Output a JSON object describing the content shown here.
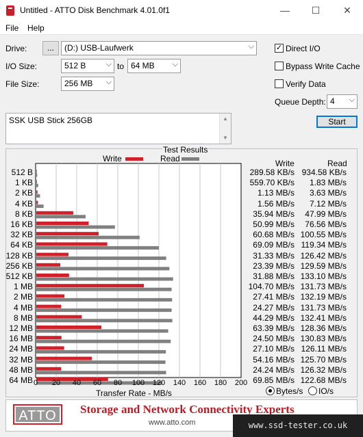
{
  "window": {
    "title": "Untitled - ATTO Disk Benchmark 4.01.0f1",
    "minimize": "—",
    "maximize": "☐",
    "close": "✕"
  },
  "menu": {
    "file": "File",
    "help": "Help"
  },
  "controls": {
    "drive_label": "Drive:",
    "browse": "...",
    "drive_value": "(D:) USB-Laufwerk",
    "io_label": "I/O Size:",
    "io_from": "512 B",
    "io_to_word": "to",
    "io_to": "64 MB",
    "file_label": "File Size:",
    "file_value": "256 MB",
    "direct_io": "Direct I/O",
    "bypass": "Bypass Write Cache",
    "verify": "Verify Data",
    "queue_label": "Queue Depth:",
    "queue_value": "4",
    "start": "Start",
    "description": "SSK USB Stick 256GB"
  },
  "checks": {
    "direct_io": "✓",
    "bypass": "",
    "verify": ""
  },
  "results": {
    "title": "Test Results",
    "legend_write": "Write",
    "legend_read": "Read",
    "col_write": "Write",
    "col_read": "Read",
    "units_bytes": "Bytes/s",
    "units_io": "IO/s",
    "x_title": "Transfer Rate - MB/s",
    "x_ticks": [
      "0",
      "20",
      "40",
      "60",
      "80",
      "100",
      "120",
      "140",
      "160",
      "180",
      "200"
    ]
  },
  "colors": {
    "write": "#d0202a",
    "read": "#808080"
  },
  "chart_data": {
    "type": "bar",
    "orientation": "horizontal",
    "categories": [
      "512 B",
      "1 KB",
      "2 KB",
      "4 KB",
      "8 KB",
      "16 KB",
      "32 KB",
      "64 KB",
      "128 KB",
      "256 KB",
      "512 KB",
      "1 MB",
      "2 MB",
      "4 MB",
      "8 MB",
      "12 MB",
      "16 MB",
      "24 MB",
      "32 MB",
      "48 MB",
      "64 MB"
    ],
    "series": [
      {
        "name": "Write",
        "values": [
          0.28,
          0.55,
          1.13,
          1.56,
          35.94,
          50.99,
          60.68,
          69.09,
          31.33,
          23.39,
          31.88,
          104.7,
          27.41,
          24.27,
          44.29,
          63.39,
          24.5,
          27.1,
          54.16,
          24.24,
          69.85
        ],
        "labels": [
          "289.58 KB/s",
          "559.70 KB/s",
          "1.13 MB/s",
          "1.56 MB/s",
          "35.94 MB/s",
          "50.99 MB/s",
          "60.68 MB/s",
          "69.09 MB/s",
          "31.33 MB/s",
          "23.39 MB/s",
          "31.88 MB/s",
          "104.70 MB/s",
          "27.41 MB/s",
          "24.27 MB/s",
          "44.29 MB/s",
          "63.39 MB/s",
          "24.50 MB/s",
          "27.10 MB/s",
          "54.16 MB/s",
          "24.24 MB/s",
          "69.85 MB/s"
        ]
      },
      {
        "name": "Read",
        "values": [
          0.91,
          1.83,
          3.63,
          7.12,
          47.99,
          76.56,
          100.55,
          119.34,
          126.42,
          129.59,
          133.1,
          131.73,
          132.19,
          131.73,
          132.41,
          128.36,
          130.83,
          126.11,
          125.7,
          126.32,
          122.68
        ],
        "labels": [
          "934.58 KB/s",
          "1.83 MB/s",
          "3.63 MB/s",
          "7.12 MB/s",
          "47.99 MB/s",
          "76.56 MB/s",
          "100.55 MB/s",
          "119.34 MB/s",
          "126.42 MB/s",
          "129.59 MB/s",
          "133.10 MB/s",
          "131.73 MB/s",
          "132.19 MB/s",
          "131.73 MB/s",
          "132.41 MB/s",
          "128.36 MB/s",
          "130.83 MB/s",
          "126.11 MB/s",
          "125.70 MB/s",
          "126.32 MB/s",
          "122.68 MB/s"
        ]
      }
    ],
    "xlabel": "Transfer Rate - MB/s",
    "xlim": [
      0,
      200
    ],
    "grid": true,
    "legend": "top"
  },
  "banner": {
    "logo": "ATTO",
    "tagline": "Storage and Network Connectivity Experts",
    "site": "www.atto.com"
  },
  "watermark": "www.ssd-tester.co.uk"
}
